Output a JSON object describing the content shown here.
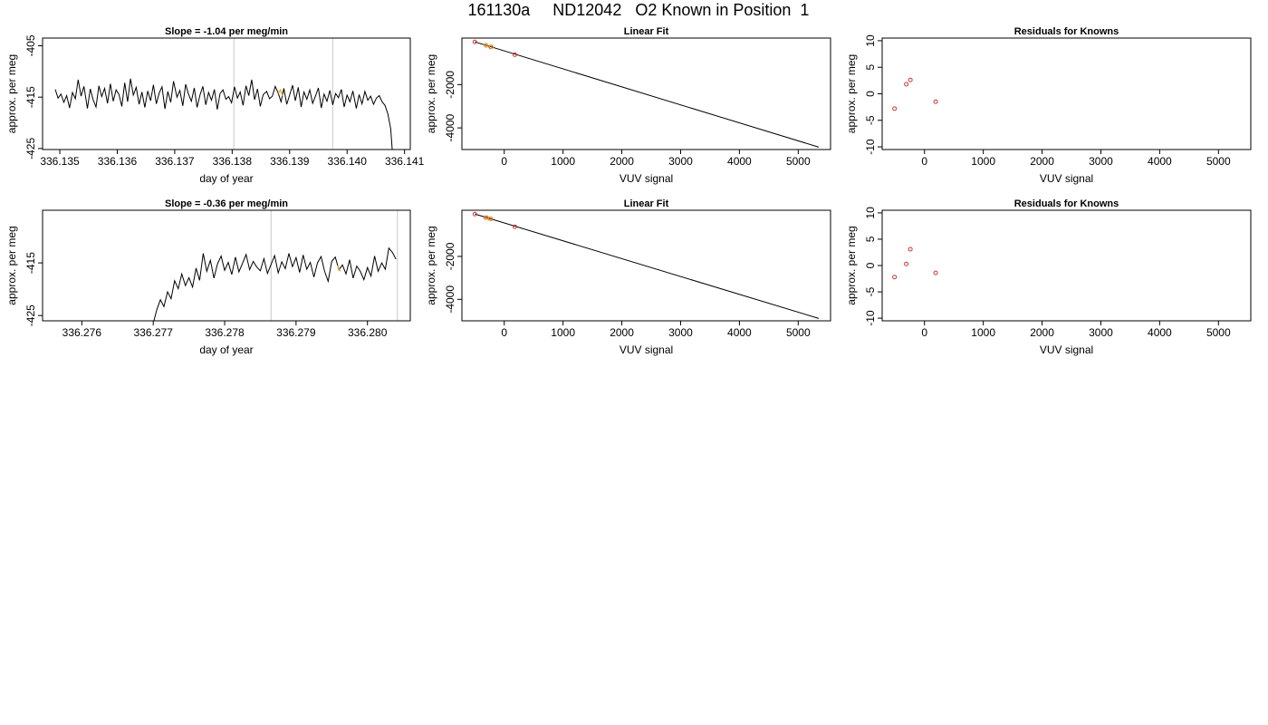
{
  "page": {
    "title": "161130a     ND12042   O2 Known in Position  1"
  },
  "chart_data": [
    {
      "id": "ts1",
      "type": "line",
      "title": "Slope =  -1.04  per meg/min",
      "xlabel": "day of year",
      "ylabel": "approx. per meg",
      "xlim": [
        336.1347,
        336.1411
      ],
      "ylim": [
        -425.2,
        -403.5
      ],
      "x_ticks": [
        336.135,
        336.136,
        336.137,
        336.138,
        336.139,
        336.14,
        336.141
      ],
      "x_tick_labels": [
        "336.135",
        "336.136",
        "336.137",
        "336.138",
        "336.139",
        "336.140",
        "336.141"
      ],
      "y_ticks": [
        -405,
        -415,
        -425
      ],
      "y_tick_labels": [
        "-405",
        "-415",
        "-425"
      ],
      "vlines": [
        336.13803,
        336.13975
      ],
      "series": [
        {
          "color": "#000000",
          "x": [
            336.13492,
            336.13497,
            336.13502,
            336.13507,
            336.13512,
            336.13517,
            336.13522,
            336.13527,
            336.13532,
            336.13537,
            336.13542,
            336.13548,
            336.13553,
            336.13558,
            336.13563,
            336.13568,
            336.13573,
            336.13578,
            336.13583,
            336.13588,
            336.13593,
            336.13598,
            336.13603,
            336.13608,
            336.13613,
            336.13618,
            336.13623,
            336.13628,
            336.13633,
            336.13638,
            336.13643,
            336.13648,
            336.13653,
            336.13658,
            336.13663,
            336.13668,
            336.13673,
            336.13678,
            336.13683,
            336.13688,
            336.13693,
            336.13698,
            336.13704,
            336.13709,
            336.13714,
            336.13719,
            336.13724,
            336.13729,
            336.13734,
            336.13739,
            336.13744,
            336.13749,
            336.13754,
            336.13759,
            336.13764,
            336.13769,
            336.13774,
            336.13779,
            336.13784,
            336.13789,
            336.13794,
            336.13799,
            336.13804,
            336.13809,
            336.13814,
            336.13819,
            336.13824,
            336.13829,
            336.13834,
            336.13839,
            336.13844,
            336.13849,
            336.13854,
            336.1386,
            336.13865,
            336.1387,
            336.13875,
            336.1388,
            336.13885,
            336.1389,
            336.13895,
            336.139,
            336.13905,
            336.1391,
            336.13915,
            336.1392,
            336.13925,
            336.1393,
            336.13935,
            336.1394,
            336.13945,
            336.1395,
            336.13955,
            336.1396,
            336.13965,
            336.1397,
            336.13975,
            336.1398,
            336.13985,
            336.1399,
            336.13995,
            336.14,
            336.14005,
            336.1401,
            336.14016,
            336.14021,
            336.14026,
            336.14031,
            336.14036,
            336.14041,
            336.14046,
            336.14051,
            336.14056,
            336.14061,
            336.14066,
            336.14071,
            336.14076,
            336.1408
          ],
          "y": [
            -413.5,
            -415.2,
            -414.4,
            -416.0,
            -414.7,
            -417.1,
            -414.1,
            -415.3,
            -411.6,
            -414.8,
            -412.9,
            -417.2,
            -413.4,
            -415.5,
            -416.9,
            -412.8,
            -414.9,
            -413.3,
            -416.2,
            -412.4,
            -415.8,
            -413.6,
            -414.5,
            -416.8,
            -412.2,
            -415.9,
            -411.4,
            -414.6,
            -413.1,
            -416.4,
            -414.0,
            -417.0,
            -413.8,
            -415.7,
            -412.6,
            -416.3,
            -414.2,
            -413.0,
            -417.3,
            -413.9,
            -416.0,
            -411.9,
            -415.0,
            -413.7,
            -416.7,
            -412.5,
            -414.4,
            -415.8,
            -413.2,
            -417.0,
            -414.6,
            -412.9,
            -416.5,
            -414.1,
            -415.6,
            -413.5,
            -417.4,
            -414.3,
            -413.6,
            -415.4,
            -414.9,
            -416.1,
            -413.0,
            -415.2,
            -414.0,
            -416.6,
            -412.8,
            -414.7,
            -411.6,
            -415.5,
            -413.4,
            -416.8,
            -414.5,
            -413.9,
            -415.3,
            -414.8,
            -412.9,
            -414.2,
            -415.9,
            -413.3,
            -416.4,
            -414.6,
            -412.7,
            -415.7,
            -413.1,
            -416.9,
            -414.0,
            -415.4,
            -413.6,
            -416.2,
            -414.8,
            -413.2,
            -417.1,
            -414.4,
            -415.8,
            -413.7,
            -416.5,
            -414.3,
            -415.1,
            -413.5,
            -416.9,
            -414.6,
            -415.9,
            -413.8,
            -417.2,
            -414.5,
            -416.3,
            -413.9,
            -415.6,
            -414.8,
            -416.4,
            -415.2,
            -414.7,
            -415.9,
            -416.6,
            -418.3,
            -421.2,
            -427.5
          ]
        }
      ],
      "highlight": {
        "color": "#e8a317",
        "x": [
          336.1388,
          336.13884,
          336.13888
        ],
        "y": [
          -414.3,
          -413.6,
          -414.8
        ]
      }
    },
    {
      "id": "fit1",
      "type": "scatter",
      "title": "Linear Fit",
      "xlabel": "VUV signal",
      "ylabel": "approx. per meg",
      "xlim": [
        -720,
        5550
      ],
      "ylim": [
        -5000,
        150
      ],
      "x_ticks": [
        0,
        1000,
        2000,
        3000,
        4000,
        5000
      ],
      "x_tick_labels": [
        "0",
        "1000",
        "2000",
        "3000",
        "4000",
        "5000"
      ],
      "y_ticks": [
        -2000,
        -4000
      ],
      "y_tick_labels": [
        "-2000",
        "-4000"
      ],
      "fit_line": {
        "x": [
          -500,
          5350
        ],
        "y": [
          -25,
          -4890
        ]
      },
      "points": {
        "color": "#cc3333",
        "x": [
          -500,
          -310,
          -230,
          180
        ],
        "y": [
          -28,
          -190,
          -260,
          -620
        ]
      },
      "highlight_points": {
        "color": "#e8a317",
        "x": [
          -310,
          -220
        ],
        "y": [
          -190,
          -255
        ]
      }
    },
    {
      "id": "res1",
      "type": "scatter",
      "title": "Residuals for Knowns",
      "xlabel": "VUV signal",
      "ylabel": "approx. per meg",
      "xlim": [
        -720,
        5550
      ],
      "ylim": [
        -10.5,
        10.5
      ],
      "x_ticks": [
        0,
        1000,
        2000,
        3000,
        4000,
        5000
      ],
      "x_tick_labels": [
        "0",
        "1000",
        "2000",
        "3000",
        "4000",
        "5000"
      ],
      "y_ticks": [
        10,
        5,
        0,
        -5,
        -10
      ],
      "y_tick_labels": [
        "10",
        "5",
        "0",
        "-5",
        "-10"
      ],
      "points": {
        "color": "#cc3333",
        "x": [
          -510,
          -310,
          -240,
          190
        ],
        "y": [
          -2.8,
          1.8,
          2.6,
          -1.5
        ]
      }
    },
    {
      "id": "ts2",
      "type": "line",
      "title": "Slope =  -0.36  per meg/min",
      "xlabel": "day of year",
      "ylabel": "approx. per meg",
      "xlim": [
        336.27545,
        336.2806
      ],
      "ylim": [
        -426.0,
        -405.0
      ],
      "x_ticks": [
        336.276,
        336.277,
        336.278,
        336.279,
        336.28
      ],
      "x_tick_labels": [
        "336.276",
        "336.277",
        "336.278",
        "336.279",
        "336.280"
      ],
      "y_ticks": [
        -415,
        -425
      ],
      "y_tick_labels": [
        "-415",
        "-425"
      ],
      "vlines": [
        336.27865,
        336.28042
      ],
      "series": [
        {
          "color": "#000000",
          "x": [
            336.277,
            336.27705,
            336.2771,
            336.27715,
            336.2772,
            336.27725,
            336.2773,
            336.27735,
            336.2774,
            336.27745,
            336.2775,
            336.27755,
            336.2776,
            336.27765,
            336.2777,
            336.27775,
            336.2778,
            336.27785,
            336.2779,
            336.27795,
            336.278,
            336.27805,
            336.2781,
            336.27815,
            336.2782,
            336.27825,
            336.2783,
            336.27835,
            336.2784,
            336.27845,
            336.2785,
            336.27855,
            336.2786,
            336.27865,
            336.2787,
            336.27875,
            336.2788,
            336.27885,
            336.2789,
            336.27895,
            336.279,
            336.27905,
            336.2791,
            336.27915,
            336.2792,
            336.27925,
            336.2793,
            336.27935,
            336.2794,
            336.27945,
            336.2795,
            336.27955,
            336.2796,
            336.27965,
            336.2797,
            336.27975,
            336.2798,
            336.27985,
            336.2799,
            336.27995,
            336.28,
            336.28005,
            336.2801,
            336.28015,
            336.2802,
            336.28025,
            336.2803,
            336.28035,
            336.2804
          ],
          "y": [
            -426.5,
            -423.9,
            -422.0,
            -423.3,
            -420.5,
            -421.8,
            -418.4,
            -419.9,
            -417.1,
            -419.3,
            -417.8,
            -419.6,
            -416.0,
            -418.3,
            -413.2,
            -416.6,
            -414.5,
            -417.9,
            -415.2,
            -413.7,
            -416.4,
            -414.9,
            -417.2,
            -413.9,
            -416.7,
            -415.1,
            -413.4,
            -416.3,
            -414.7,
            -415.8,
            -416.5,
            -414.2,
            -417.0,
            -415.3,
            -413.6,
            -416.9,
            -414.8,
            -416.1,
            -413.2,
            -415.7,
            -414.0,
            -416.8,
            -413.5,
            -416.2,
            -414.9,
            -417.7,
            -415.0,
            -413.8,
            -416.6,
            -418.5,
            -414.7,
            -413.9,
            -416.3,
            -415.4,
            -417.1,
            -414.4,
            -417.9,
            -415.6,
            -416.6,
            -418.2,
            -415.9,
            -417.5,
            -413.7,
            -416.6,
            -415.0,
            -416.2,
            -412.2,
            -413.0,
            -414.3
          ]
        }
      ],
      "highlight": {
        "color": "#e8a317",
        "x": [
          336.27958,
          336.27962
        ],
        "y": [
          -415.5,
          -416.6
        ]
      }
    },
    {
      "id": "fit2",
      "type": "scatter",
      "title": "Linear Fit",
      "xlabel": "VUV signal",
      "ylabel": "approx. per meg",
      "xlim": [
        -720,
        5550
      ],
      "ylim": [
        -5000,
        150
      ],
      "x_ticks": [
        0,
        1000,
        2000,
        3000,
        4000,
        5000
      ],
      "x_tick_labels": [
        "0",
        "1000",
        "2000",
        "3000",
        "4000",
        "5000"
      ],
      "y_ticks": [
        -2000,
        -4000
      ],
      "y_tick_labels": [
        "-2000",
        "-4000"
      ],
      "fit_line": {
        "x": [
          -500,
          5350
        ],
        "y": [
          -25,
          -4890
        ]
      },
      "points": {
        "color": "#cc3333",
        "x": [
          -500,
          -310,
          -230,
          180
        ],
        "y": [
          -28,
          -200,
          -250,
          -620
        ]
      },
      "highlight_points": {
        "color": "#e8a317",
        "x": [
          -300,
          -240
        ],
        "y": [
          -195,
          -245
        ]
      }
    },
    {
      "id": "res2",
      "type": "scatter",
      "title": "Residuals for Knowns",
      "xlabel": "VUV signal",
      "ylabel": "approx. per meg",
      "xlim": [
        -720,
        5550
      ],
      "ylim": [
        -10.5,
        10.5
      ],
      "x_ticks": [
        0,
        1000,
        2000,
        3000,
        4000,
        5000
      ],
      "x_tick_labels": [
        "0",
        "1000",
        "2000",
        "3000",
        "4000",
        "5000"
      ],
      "y_ticks": [
        10,
        5,
        0,
        -5,
        -10
      ],
      "y_tick_labels": [
        "10",
        "5",
        "0",
        "-5",
        "-10"
      ],
      "points": {
        "color": "#cc3333",
        "x": [
          -510,
          -310,
          -240,
          190
        ],
        "y": [
          -2.2,
          0.3,
          3.1,
          -1.4
        ]
      }
    }
  ]
}
